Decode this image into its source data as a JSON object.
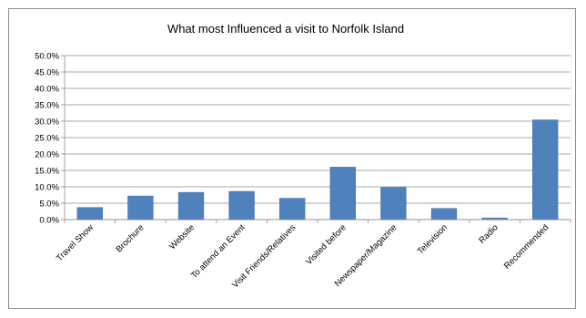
{
  "chart_data": {
    "type": "bar",
    "title": "What most Influenced a visit to Norfolk Island",
    "categories": [
      "Travel Show",
      "Brochure",
      "Website",
      "To attend an Event",
      "Visit Friends/Relatives",
      "Visited before",
      "Newspaper/Magazine",
      "Television",
      "Radio",
      "Recommended"
    ],
    "values": [
      3.7,
      7.2,
      8.3,
      8.6,
      6.5,
      16.0,
      9.8,
      3.4,
      0.5,
      30.4
    ],
    "y_ticks": [
      "0.0%",
      "5.0%",
      "10.0%",
      "15.0%",
      "20.0%",
      "25.0%",
      "30.0%",
      "35.0%",
      "40.0%",
      "45.0%",
      "50.0%"
    ],
    "ylim": [
      0,
      50
    ],
    "unit": "%",
    "grid": true,
    "legend": "none",
    "colors": {
      "bar": "#4f81bd",
      "bar_edge": "#3d6aa0",
      "grid": "#8c8c8c",
      "axis": "#8c8c8c"
    }
  }
}
